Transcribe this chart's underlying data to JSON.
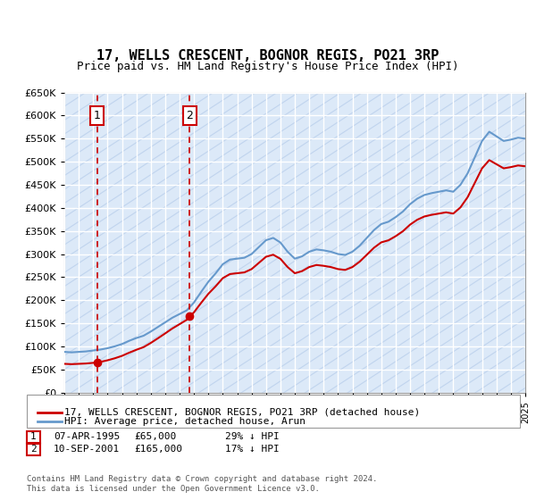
{
  "title": "17, WELLS CRESCENT, BOGNOR REGIS, PO21 3RP",
  "subtitle": "Price paid vs. HM Land Registry's House Price Index (HPI)",
  "legend_line1": "17, WELLS CRESCENT, BOGNOR REGIS, PO21 3RP (detached house)",
  "legend_line2": "HPI: Average price, detached house, Arun",
  "footnote": "Contains HM Land Registry data © Crown copyright and database right 2024.\nThis data is licensed under the Open Government Licence v3.0.",
  "sale1_date": "07-APR-1995",
  "sale1_price": 65000,
  "sale1_hpi": "29% ↓ HPI",
  "sale2_date": "10-SEP-2001",
  "sale2_price": 165000,
  "sale2_hpi": "17% ↓ HPI",
  "ylim": [
    0,
    650000
  ],
  "yticks": [
    0,
    50000,
    100000,
    150000,
    200000,
    250000,
    300000,
    350000,
    400000,
    450000,
    500000,
    550000,
    600000,
    650000
  ],
  "background_color": "#dce9f8",
  "hatch_color": "#c0d4ee",
  "line_color_property": "#cc0000",
  "line_color_hpi": "#6699cc",
  "dashed_line_color": "#cc0000",
  "marker_color": "#cc0000",
  "annotation_box_color": "#cc0000",
  "grid_color": "#ffffff",
  "sale1_x": 1995.27,
  "sale2_x": 2001.71
}
